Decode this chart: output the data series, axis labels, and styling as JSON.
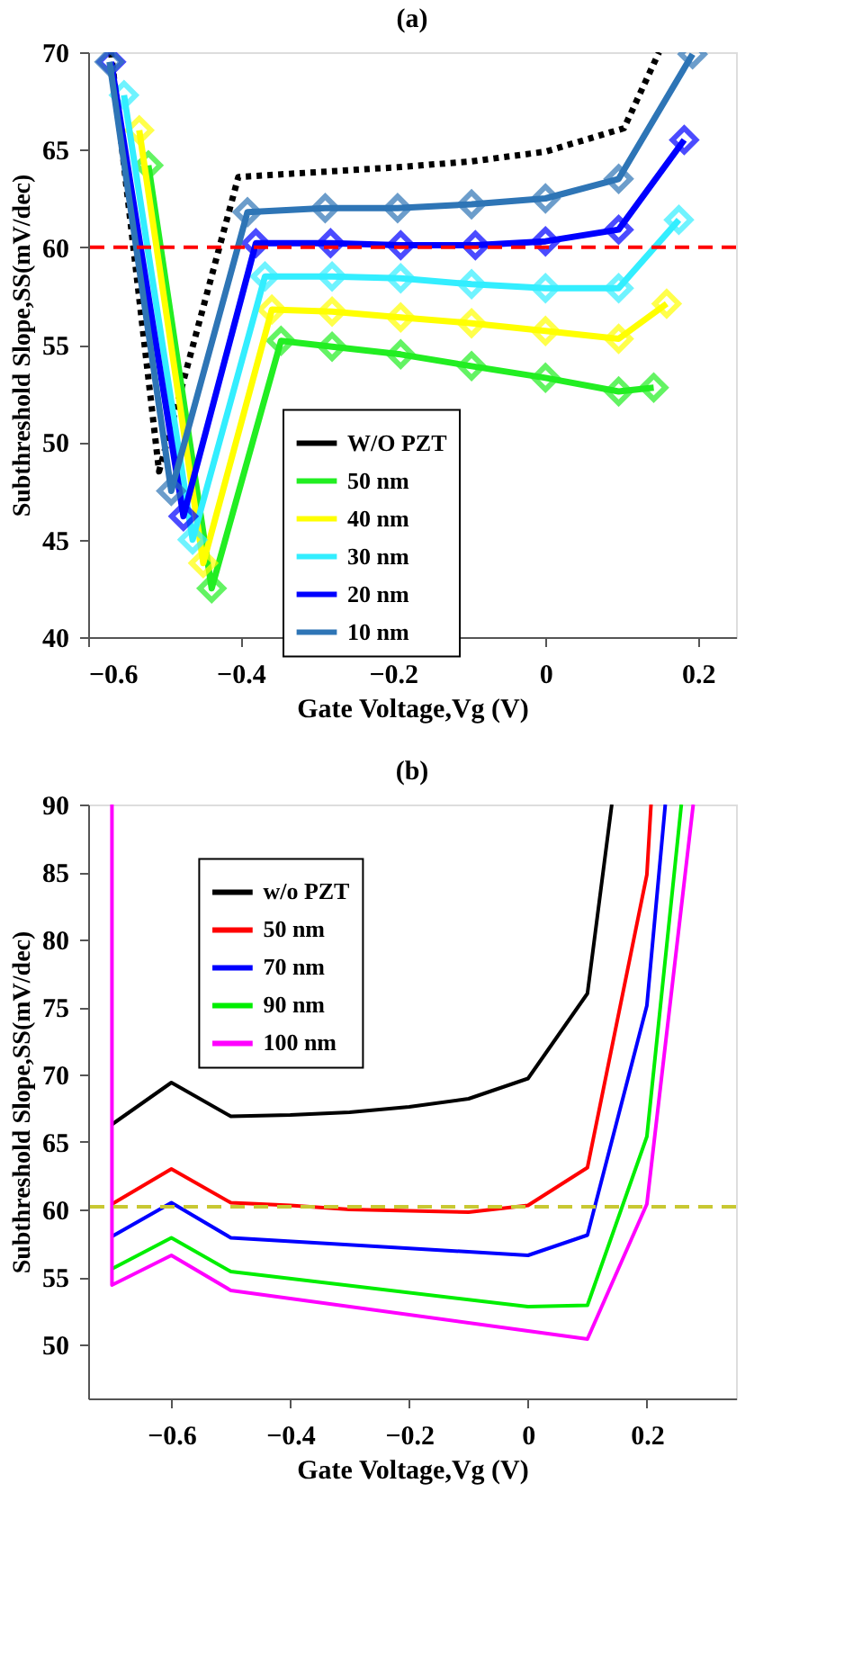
{
  "chart_data": [
    {
      "type": "line",
      "title": "(a)",
      "xlabel": "Gate Voltage,Vg (V)",
      "ylabel": "Subthreshold Slope,SS(mV/dec)",
      "xlim": [
        -0.6,
        0.25
      ],
      "ylim": [
        40,
        70
      ],
      "xticks": [
        -0.6,
        -0.4,
        -0.2,
        0,
        0.2
      ],
      "yticks": [
        40,
        45,
        50,
        55,
        60,
        65,
        70
      ],
      "grid": false,
      "legend": "bottom",
      "ref_lines": [
        {
          "axis": "y",
          "value": 60,
          "color": "#ff0000",
          "line_style": "dashed"
        }
      ],
      "series": [
        {
          "name": "W/O PZT",
          "color": "#000000",
          "marker": "none",
          "line_style": "dotted",
          "x": [
            -0.57,
            -0.507,
            -0.403,
            -0.194,
            -0.097,
            0.0,
            0.103,
            0.149
          ],
          "values": [
            70,
            48.5,
            63.6,
            64.1,
            64.4,
            64.9,
            66.1,
            70
          ]
        },
        {
          "name": "50 nm",
          "color": "#22ee22",
          "marker": "diamond",
          "line_style": "solid",
          "x": [
            -0.521,
            -0.438,
            -0.347,
            -0.28,
            -0.19,
            -0.097,
            0.0,
            0.096,
            0.142
          ],
          "values": [
            64.2,
            42.5,
            55.2,
            54.9,
            54.5,
            53.9,
            53.3,
            52.6,
            52.8
          ]
        },
        {
          "name": "40 nm",
          "color": "#ffff00",
          "marker": "diamond",
          "line_style": "solid",
          "x": [
            -0.533,
            -0.449,
            -0.359,
            -0.28,
            -0.19,
            -0.097,
            0.0,
            0.096,
            0.159
          ],
          "values": [
            66.0,
            43.8,
            56.8,
            56.7,
            56.4,
            56.1,
            55.7,
            55.3,
            57.1
          ]
        },
        {
          "name": "30 nm",
          "color": "#33eeff",
          "marker": "diamond",
          "line_style": "solid",
          "x": [
            -0.553,
            -0.463,
            -0.368,
            -0.28,
            -0.19,
            -0.097,
            0.0,
            0.096,
            0.175
          ],
          "values": [
            67.8,
            45.0,
            58.5,
            58.5,
            58.4,
            58.1,
            57.9,
            57.9,
            61.4
          ]
        },
        {
          "name": "20 nm",
          "color": "#0000ff",
          "marker": "diamond",
          "line_style": "solid",
          "x": [
            -0.57,
            -0.475,
            -0.38,
            -0.282,
            -0.19,
            -0.092,
            0.0,
            0.096,
            0.182
          ],
          "values": [
            69.5,
            46.2,
            60.2,
            60.2,
            60.1,
            60.1,
            60.3,
            60.9,
            65.5
          ]
        },
        {
          "name": "10 nm",
          "color": "#2e75b6",
          "marker": "diamond",
          "line_style": "solid",
          "x": [
            -0.572,
            -0.491,
            -0.391,
            -0.289,
            -0.194,
            -0.097,
            0.0,
            0.096,
            0.193
          ],
          "values": [
            69.5,
            47.5,
            61.8,
            62.0,
            62.0,
            62.2,
            62.5,
            63.5,
            69.9
          ]
        }
      ]
    },
    {
      "type": "line",
      "title": "(b)",
      "xlabel": "Gate Voltage,Vg (V)",
      "ylabel": "Subthreshold Slope,SS(mV/dec)",
      "xlim": [
        -0.74,
        0.35
      ],
      "ylim": [
        46,
        90
      ],
      "xticks": [
        -0.6,
        -0.4,
        -0.2,
        0,
        0.2
      ],
      "yticks": [
        50,
        55,
        60,
        65,
        70,
        75,
        80,
        85,
        90
      ],
      "grid": false,
      "legend": "top left",
      "ref_lines": [
        {
          "axis": "y",
          "value": 60.2,
          "color": "#c8c832",
          "line_style": "dashed"
        }
      ],
      "series": [
        {
          "name": "w/o PZT",
          "color": "#000000",
          "line_style": "solid",
          "x": [
            -0.7,
            -0.6,
            -0.5,
            -0.4,
            -0.3,
            -0.2,
            -0.1,
            0.0,
            0.1,
            0.141
          ],
          "values": [
            66.3,
            69.4,
            66.9,
            67.0,
            67.2,
            67.6,
            68.2,
            69.7,
            76.0,
            90
          ]
        },
        {
          "name": "50 nm",
          "color": "#ff0000",
          "line_style": "solid",
          "x": [
            -0.7,
            -0.6,
            -0.5,
            -0.4,
            -0.3,
            -0.2,
            -0.1,
            0.0,
            0.1,
            0.2,
            0.207
          ],
          "values": [
            60.4,
            63.0,
            60.5,
            60.3,
            60.0,
            59.9,
            59.8,
            60.3,
            63.1,
            84.8,
            90
          ]
        },
        {
          "name": "70 nm",
          "color": "#0000ff",
          "line_style": "solid",
          "x": [
            -0.7,
            -0.6,
            -0.5,
            0.0,
            0.1,
            0.2,
            0.231
          ],
          "values": [
            58.0,
            60.5,
            57.9,
            56.6,
            58.1,
            75.1,
            90
          ]
        },
        {
          "name": "90 nm",
          "color": "#00ee00",
          "line_style": "solid",
          "x": [
            -0.7,
            -0.6,
            -0.5,
            0.0,
            0.1,
            0.2,
            0.258
          ],
          "values": [
            55.6,
            57.9,
            55.4,
            52.8,
            52.9,
            65.4,
            90
          ]
        },
        {
          "name": "100 nm",
          "color": "#ff00ff",
          "line_style": "solid",
          "x": [
            -0.7,
            -0.7,
            -0.6,
            -0.5,
            0.0,
            0.1,
            0.2,
            0.278
          ],
          "values": [
            90,
            54.4,
            56.6,
            54.0,
            51.0,
            50.4,
            60.4,
            90
          ]
        }
      ]
    }
  ]
}
